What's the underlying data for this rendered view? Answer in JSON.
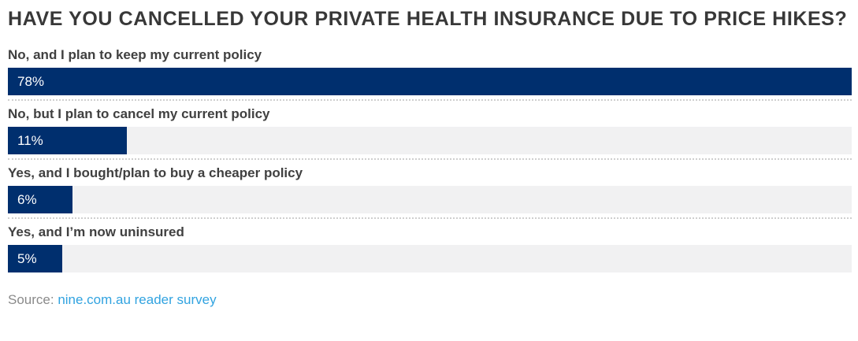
{
  "chart_data": {
    "type": "bar",
    "orientation": "horizontal",
    "title": "HAVE YOU CANCELLED YOUR PRIVATE HEALTH INSURANCE DUE TO PRICE HIKES?",
    "categories": [
      "No, and I plan to keep my current policy",
      "No, but I plan to cancel my current policy",
      "Yes, and I bought/plan to buy a cheaper policy",
      "Yes, and I’m now uninsured"
    ],
    "values": [
      78,
      11,
      6,
      5
    ],
    "value_labels": [
      "78%",
      "11%",
      "6%",
      "5%"
    ],
    "unit": "%",
    "max_value": 78,
    "bars_scaled_to_max": true,
    "grid": false,
    "legend": false,
    "bar_color": "#002f6e",
    "track_color": "#f1f1f2"
  },
  "footer": {
    "source_prefix": "Source: ",
    "source_link": "nine.com.au reader survey"
  },
  "colors": {
    "title_text": "#383838",
    "label_text": "#404040",
    "value_text": "#ffffff",
    "separator": "#cfcfcf",
    "source_text": "#8a8a8a",
    "link_text": "#31a3e0"
  }
}
